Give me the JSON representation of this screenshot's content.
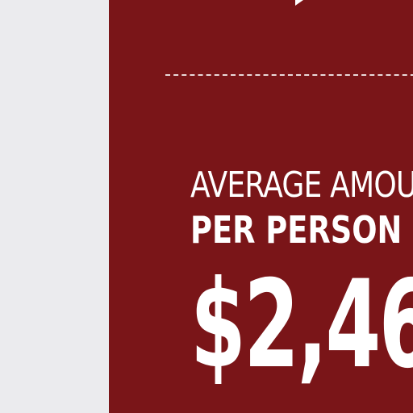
{
  "stat_card": {
    "label_line1": "AVERAGE AMOU",
    "label_line2": "PER PERSON",
    "amount": "$2,46"
  },
  "colors": {
    "panel": "#7a1518",
    "page_background": "#ebebee",
    "text": "#ffffff",
    "divider": "#e9d9d9"
  }
}
